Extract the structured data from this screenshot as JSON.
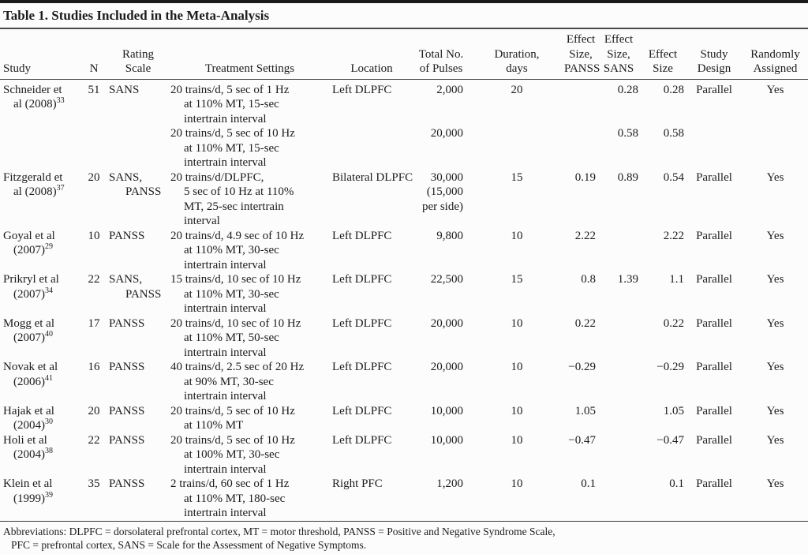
{
  "title": "Table 1. Studies Included in the Meta-Analysis",
  "columns": {
    "study": "Study",
    "n": "N",
    "scale": "Rating\nScale",
    "treatment": "Treatment Settings",
    "location": "Location",
    "pulses": "Total No.\nof Pulses",
    "duration": "Duration,\ndays",
    "es_panss": "Effect\nSize,\nPANSS",
    "es_sans": "Effect\nSize,\nSANS",
    "es": "Effect\nSize",
    "design": "Study\nDesign",
    "assigned": "Randomly\nAssigned"
  },
  "rows": [
    {
      "study_lines": [
        "Schneider et",
        "al (2008)"
      ],
      "ref": "33",
      "n": "51",
      "scale_lines": [
        "SANS"
      ],
      "treatment_lines": [
        "20 trains/d, 5 sec of 1 Hz",
        "at 110% MT, 15-sec",
        "intertrain interval"
      ],
      "location": "Left DLPFC",
      "pulses_lines": [
        "2,000"
      ],
      "duration": "20",
      "es_panss": "",
      "es_sans": "0.28",
      "es": "0.28",
      "design": "Parallel",
      "assigned": "Yes"
    },
    {
      "study_lines": [],
      "ref": "",
      "n": "",
      "scale_lines": [],
      "treatment_lines": [
        "20 trains/d, 5 sec of 10 Hz",
        "at 110% MT, 15-sec",
        "intertrain interval"
      ],
      "location": "",
      "pulses_lines": [
        "20,000"
      ],
      "duration": "",
      "es_panss": "",
      "es_sans": "0.58",
      "es": "0.58",
      "design": "",
      "assigned": ""
    },
    {
      "study_lines": [
        "Fitzgerald et",
        "al (2008)"
      ],
      "ref": "37",
      "n": "20",
      "scale_lines": [
        "SANS,",
        "PANSS"
      ],
      "treatment_lines": [
        "20 trains/d/DLPFC,",
        "5 sec of 10 Hz at 110%",
        "MT, 25-sec intertrain",
        "interval"
      ],
      "location": "Bilateral DLPFC",
      "pulses_lines": [
        "30,000",
        "(15,000",
        "per side)"
      ],
      "duration": "15",
      "es_panss": "0.19",
      "es_sans": "0.89",
      "es": "0.54",
      "design": "Parallel",
      "assigned": "Yes"
    },
    {
      "study_lines": [
        "Goyal et al",
        "(2007)"
      ],
      "ref": "29",
      "n": "10",
      "scale_lines": [
        "PANSS"
      ],
      "treatment_lines": [
        "20 trains/d, 4.9 sec of 10 Hz",
        "at 110% MT, 30-sec",
        "intertrain interval"
      ],
      "location": "Left DLPFC",
      "pulses_lines": [
        "9,800"
      ],
      "duration": "10",
      "es_panss": "2.22",
      "es_sans": "",
      "es": "2.22",
      "design": "Parallel",
      "assigned": "Yes"
    },
    {
      "study_lines": [
        "Prikryl et al",
        "(2007)"
      ],
      "ref": "34",
      "n": "22",
      "scale_lines": [
        "SANS,",
        "PANSS"
      ],
      "treatment_lines": [
        "15 trains/d, 10 sec of 10 Hz",
        "at 110% MT, 30-sec",
        "intertrain interval"
      ],
      "location": "Left DLPFC",
      "pulses_lines": [
        "22,500"
      ],
      "duration": "15",
      "es_panss": "0.8",
      "es_sans": "1.39",
      "es": "1.1",
      "design": "Parallel",
      "assigned": "Yes"
    },
    {
      "study_lines": [
        "Mogg et al",
        "(2007)"
      ],
      "ref": "40",
      "n": "17",
      "scale_lines": [
        "PANSS"
      ],
      "treatment_lines": [
        "20 trains/d, 10 sec of 10 Hz",
        "at 110% MT, 50-sec",
        "intertrain interval"
      ],
      "location": "Left DLPFC",
      "pulses_lines": [
        "20,000"
      ],
      "duration": "10",
      "es_panss": "0.22",
      "es_sans": "",
      "es": "0.22",
      "design": "Parallel",
      "assigned": "Yes"
    },
    {
      "study_lines": [
        "Novak et al",
        "(2006)"
      ],
      "ref": "41",
      "n": "16",
      "scale_lines": [
        "PANSS"
      ],
      "treatment_lines": [
        "40 trains/d, 2.5 sec of 20 Hz",
        "at 90% MT, 30-sec",
        "intertrain interval"
      ],
      "location": "Left DLPFC",
      "pulses_lines": [
        "20,000"
      ],
      "duration": "10",
      "es_panss": "−0.29",
      "es_sans": "",
      "es": "−0.29",
      "design": "Parallel",
      "assigned": "Yes"
    },
    {
      "study_lines": [
        "Hajak et al",
        "(2004)"
      ],
      "ref": "30",
      "n": "20",
      "scale_lines": [
        "PANSS"
      ],
      "treatment_lines": [
        "20 trains/d, 5 sec of 10 Hz",
        "at 110% MT"
      ],
      "location": "Left DLPFC",
      "pulses_lines": [
        "10,000"
      ],
      "duration": "10",
      "es_panss": "1.05",
      "es_sans": "",
      "es": "1.05",
      "design": "Parallel",
      "assigned": "Yes"
    },
    {
      "study_lines": [
        "Holi et al",
        "(2004)"
      ],
      "ref": "38",
      "n": "22",
      "scale_lines": [
        "PANSS"
      ],
      "treatment_lines": [
        "20 trains/d, 5 sec of 10 Hz",
        "at 100% MT, 30-sec",
        "intertrain interval"
      ],
      "location": "Left DLPFC",
      "pulses_lines": [
        "10,000"
      ],
      "duration": "10",
      "es_panss": "−0.47",
      "es_sans": "",
      "es": "−0.47",
      "design": "Parallel",
      "assigned": "Yes"
    },
    {
      "study_lines": [
        "Klein et al",
        "(1999)"
      ],
      "ref": "39",
      "n": "35",
      "scale_lines": [
        "PANSS"
      ],
      "treatment_lines": [
        "2 trains/d, 60 sec of 1 Hz",
        "at 110% MT, 180-sec",
        "intertrain interval"
      ],
      "location": "Right PFC",
      "pulses_lines": [
        "1,200"
      ],
      "duration": "10",
      "es_panss": "0.1",
      "es_sans": "",
      "es": "0.1",
      "design": "Parallel",
      "assigned": "Yes"
    }
  ],
  "footnote": {
    "line1": "Abbreviations: DLPFC = dorsolateral prefrontal cortex, MT = motor threshold, PANSS = Positive and Negative Syndrome Scale,",
    "line2": "PFC = prefrontal cortex, SANS = Scale for the Assessment of Negative Symptoms."
  }
}
